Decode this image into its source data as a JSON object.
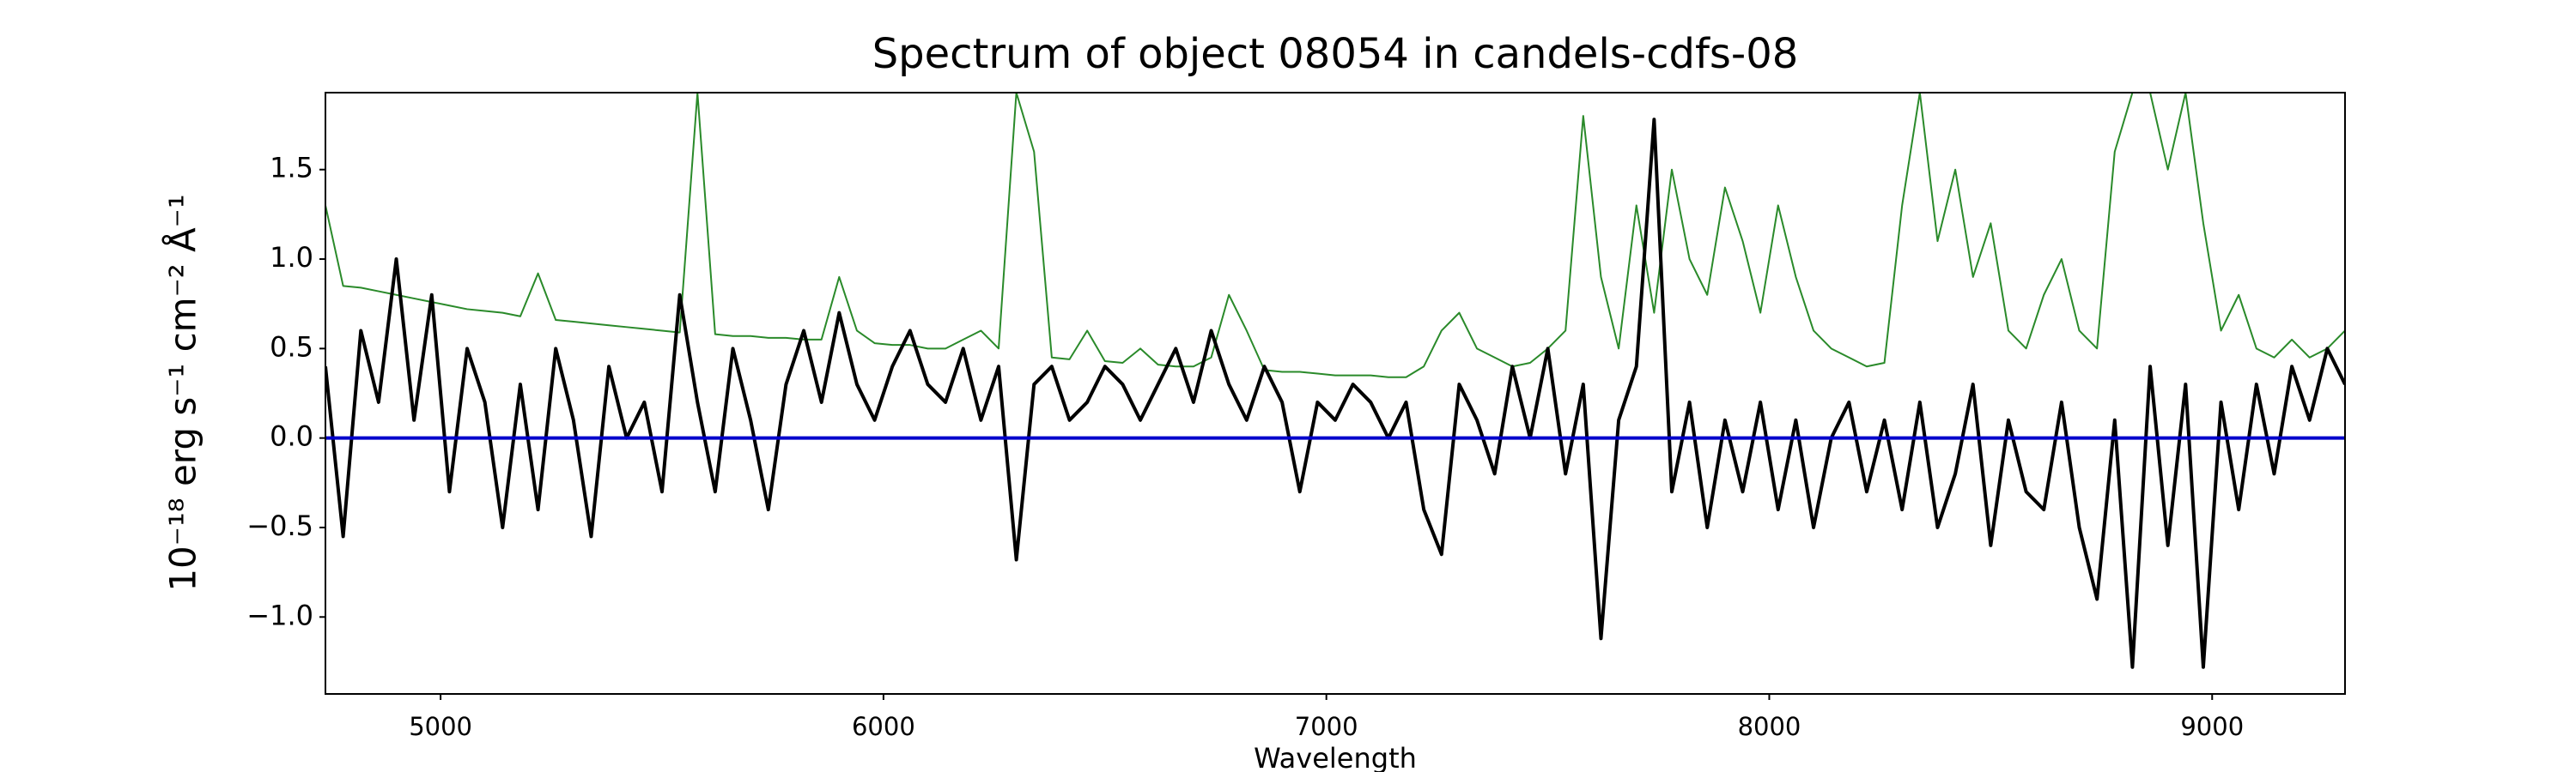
{
  "chart_data": {
    "type": "line",
    "title": "Spectrum of object 08054 in candels-cdfs-08",
    "xlabel": "Wavelength",
    "ylabel": "10⁻¹⁸ erg s⁻¹ cm⁻² Å⁻¹",
    "x": [
      4740,
      4780,
      4820,
      4860,
      4900,
      4940,
      4980,
      5020,
      5060,
      5100,
      5140,
      5180,
      5220,
      5260,
      5300,
      5340,
      5380,
      5420,
      5460,
      5500,
      5540,
      5580,
      5620,
      5660,
      5700,
      5740,
      5780,
      5820,
      5860,
      5900,
      5940,
      5980,
      6020,
      6060,
      6100,
      6140,
      6180,
      6220,
      6260,
      6300,
      6340,
      6380,
      6420,
      6460,
      6500,
      6540,
      6580,
      6620,
      6660,
      6700,
      6740,
      6780,
      6820,
      6860,
      6900,
      6940,
      6980,
      7020,
      7060,
      7100,
      7140,
      7180,
      7220,
      7260,
      7300,
      7340,
      7380,
      7420,
      7460,
      7500,
      7540,
      7580,
      7620,
      7660,
      7700,
      7740,
      7780,
      7820,
      7860,
      7900,
      7940,
      7980,
      8020,
      8060,
      8100,
      8140,
      8180,
      8220,
      8260,
      8300,
      8340,
      8380,
      8420,
      8460,
      8500,
      8540,
      8580,
      8620,
      8660,
      8700,
      8740,
      8780,
      8820,
      8860,
      8900,
      8940,
      8980,
      9020,
      9060,
      9100,
      9140,
      9180,
      9220,
      9260,
      9300
    ],
    "series": [
      {
        "color": "#2a8a2a",
        "width": 2,
        "values": [
          1.3,
          0.85,
          0.84,
          0.82,
          0.8,
          0.78,
          0.76,
          0.74,
          0.72,
          0.71,
          0.7,
          0.68,
          0.92,
          0.66,
          0.65,
          0.64,
          0.63,
          0.62,
          0.61,
          0.6,
          0.59,
          1.93,
          0.58,
          0.57,
          0.57,
          0.56,
          0.56,
          0.55,
          0.55,
          0.9,
          0.6,
          0.53,
          0.52,
          0.52,
          0.5,
          0.5,
          0.55,
          0.6,
          0.5,
          1.93,
          1.6,
          0.45,
          0.44,
          0.6,
          0.43,
          0.42,
          0.5,
          0.41,
          0.4,
          0.4,
          0.45,
          0.8,
          0.6,
          0.38,
          0.37,
          0.37,
          0.36,
          0.35,
          0.35,
          0.35,
          0.34,
          0.34,
          0.4,
          0.6,
          0.7,
          0.5,
          0.45,
          0.4,
          0.42,
          0.5,
          0.6,
          1.8,
          0.9,
          0.5,
          1.3,
          0.7,
          1.5,
          1.0,
          0.8,
          1.4,
          1.1,
          0.7,
          1.3,
          0.9,
          0.6,
          0.5,
          0.45,
          0.4,
          0.42,
          1.3,
          1.93,
          1.1,
          1.5,
          0.9,
          1.2,
          0.6,
          0.5,
          0.8,
          1.0,
          0.6,
          0.5,
          1.6,
          1.93,
          1.93,
          1.5,
          1.93,
          1.2,
          0.6,
          0.8,
          0.5,
          0.45,
          0.55,
          0.45,
          0.5,
          0.6
        ]
      },
      {
        "color": "#000000",
        "width": 4,
        "values": [
          0.4,
          -0.55,
          0.6,
          0.2,
          1.0,
          0.1,
          0.8,
          -0.3,
          0.5,
          0.2,
          -0.5,
          0.3,
          -0.4,
          0.5,
          0.1,
          -0.55,
          0.4,
          0.0,
          0.2,
          -0.3,
          0.8,
          0.2,
          -0.3,
          0.5,
          0.1,
          -0.4,
          0.3,
          0.6,
          0.2,
          0.7,
          0.3,
          0.1,
          0.4,
          0.6,
          0.3,
          0.2,
          0.5,
          0.1,
          0.4,
          -0.68,
          0.3,
          0.4,
          0.1,
          0.2,
          0.4,
          0.3,
          0.1,
          0.3,
          0.5,
          0.2,
          0.6,
          0.3,
          0.1,
          0.4,
          0.2,
          -0.3,
          0.2,
          0.1,
          0.3,
          0.2,
          0.0,
          0.2,
          -0.4,
          -0.65,
          0.3,
          0.1,
          -0.2,
          0.4,
          0.0,
          0.5,
          -0.2,
          0.3,
          -1.12,
          0.1,
          0.4,
          1.78,
          -0.3,
          0.2,
          -0.5,
          0.1,
          -0.3,
          0.2,
          -0.4,
          0.1,
          -0.5,
          0.0,
          0.2,
          -0.3,
          0.1,
          -0.4,
          0.2,
          -0.5,
          -0.2,
          0.3,
          -0.6,
          0.1,
          -0.3,
          -0.4,
          0.2,
          -0.5,
          -0.9,
          0.1,
          -1.28,
          0.4,
          -0.6,
          0.3,
          -1.28,
          0.2,
          -0.4,
          0.3,
          -0.2,
          0.4,
          0.1,
          0.5,
          0.3
        ]
      }
    ],
    "zero_line": {
      "value": 0,
      "color": "#0000cc"
    },
    "xlim": [
      4740,
      9300
    ],
    "ylim": [
      -1.43,
      1.93
    ],
    "xticks": [
      5000,
      6000,
      7000,
      8000,
      9000
    ],
    "yticks": [
      {
        "value": -1,
        "label": "−1.0"
      },
      {
        "value": -0.5,
        "label": "−0.5"
      },
      {
        "value": 0,
        "label": "0.0"
      },
      {
        "value": 0.5,
        "label": "0.5"
      },
      {
        "value": 1,
        "label": "1.0"
      },
      {
        "value": 1.5,
        "label": "1.5"
      }
    ],
    "grid": false
  }
}
